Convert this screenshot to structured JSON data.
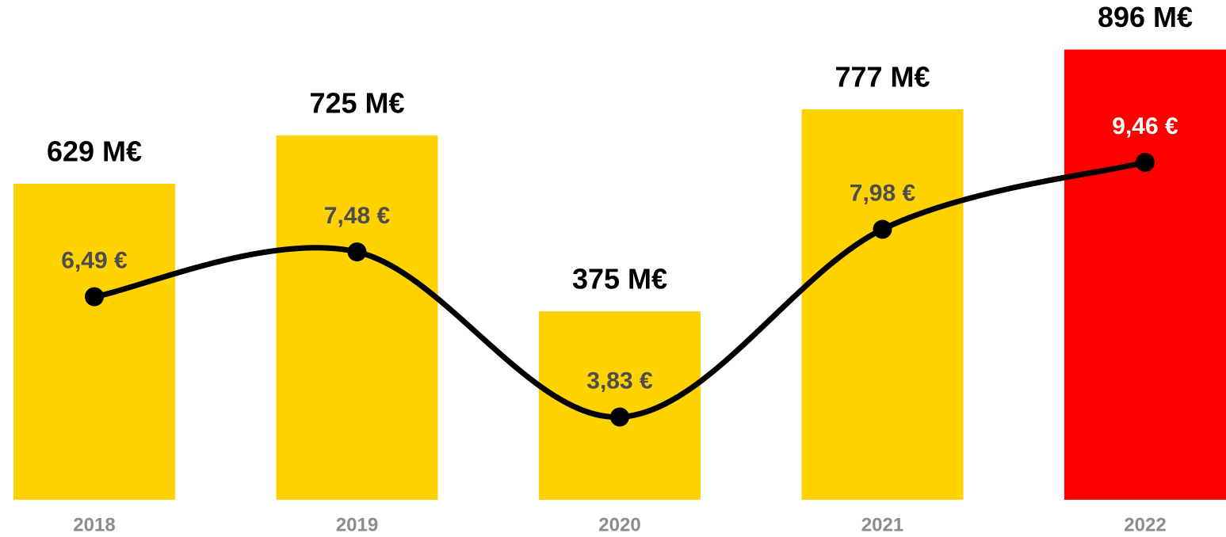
{
  "chart_data": {
    "type": "bar_line",
    "categories": [
      "2018",
      "2019",
      "2020",
      "2021",
      "2022"
    ],
    "series": [
      {
        "type": "bar",
        "values": [
          629,
          725,
          375,
          777,
          896
        ],
        "value_labels": [
          "629 M€",
          "725 M€",
          "375 M€",
          "777 M€",
          "896 M€"
        ],
        "colors": [
          "#ffd200",
          "#ffd200",
          "#ffd200",
          "#ffd200",
          "#ff0000"
        ]
      },
      {
        "type": "line",
        "axis": "y2",
        "color": "#000000",
        "values": [
          6.49,
          7.48,
          3.83,
          7.98,
          9.46
        ],
        "value_labels": [
          "6,49 €",
          "7,48 €",
          "3,83 €",
          "7,98 €",
          "9,46 €"
        ],
        "label_colors": [
          "#4d4d4d",
          "#4d4d4d",
          "#4d4d4d",
          "#4d4d4d",
          "#ffffff"
        ]
      }
    ],
    "ylim": [
      0,
      900
    ],
    "y2lim": [
      2,
      12
    ]
  }
}
